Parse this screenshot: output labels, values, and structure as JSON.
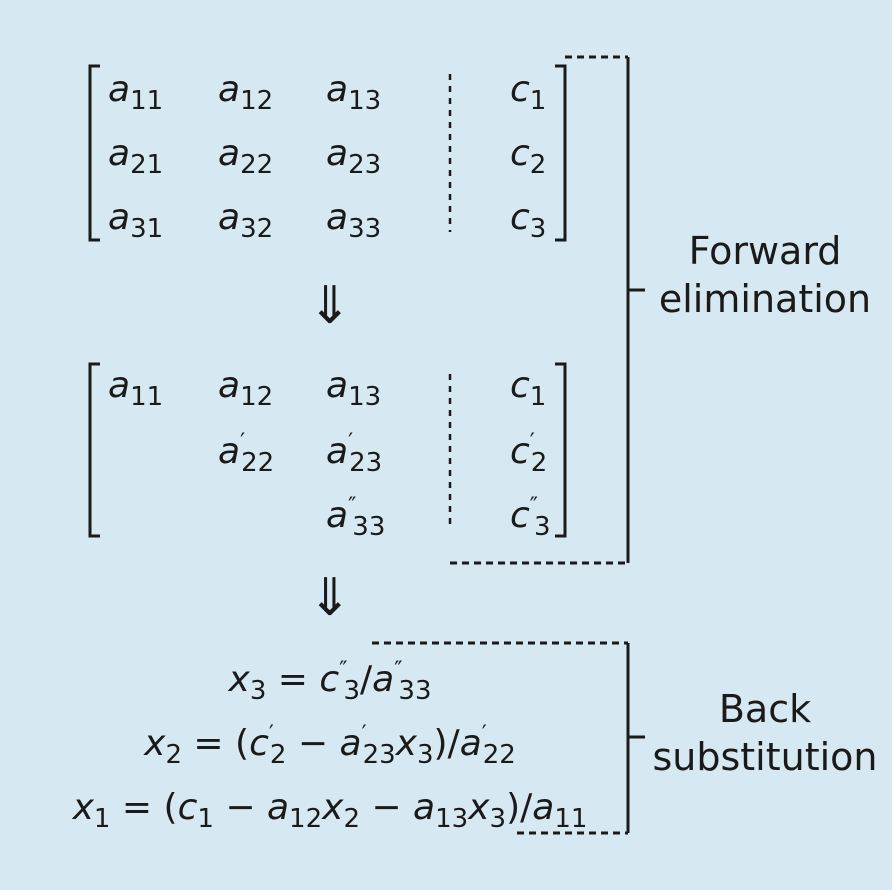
{
  "matrix1": {
    "rows": [
      [
        {
          "v": "a",
          "s": "11"
        },
        {
          "v": "a",
          "s": "12"
        },
        {
          "v": "a",
          "s": "13"
        },
        {
          "v": "c",
          "s": "1"
        }
      ],
      [
        {
          "v": "a",
          "s": "21"
        },
        {
          "v": "a",
          "s": "22"
        },
        {
          "v": "a",
          "s": "23"
        },
        {
          "v": "c",
          "s": "2"
        }
      ],
      [
        {
          "v": "a",
          "s": "31"
        },
        {
          "v": "a",
          "s": "32"
        },
        {
          "v": "a",
          "s": "33"
        },
        {
          "v": "c",
          "s": "3"
        }
      ]
    ]
  },
  "matrix2": {
    "rows": [
      [
        {
          "v": "a",
          "s": "11"
        },
        {
          "v": "a",
          "s": "12"
        },
        {
          "v": "a",
          "s": "13"
        },
        {
          "v": "c",
          "s": "1"
        }
      ],
      [
        null,
        {
          "v": "a",
          "p": "′",
          "s": "22"
        },
        {
          "v": "a",
          "p": "′",
          "s": "23"
        },
        {
          "v": "c",
          "p": "′",
          "s": "2"
        }
      ],
      [
        null,
        null,
        {
          "v": "a",
          "p": "″",
          "s": "33"
        },
        {
          "v": "c",
          "p": "″",
          "s": "3"
        }
      ]
    ]
  },
  "arrow_symbol": "⇓",
  "labels": {
    "forward_line1": "Forward",
    "forward_line2": "elimination",
    "back_line1": "Back",
    "back_line2": "substitution"
  },
  "equations": [
    "<i>x</i><sub>3</sub> = <i>c</i><sup>″</sup><sub>3</sub>/<i>a</i><sup>″</sup><sub>33</sub>",
    "<i>x</i><sub>2</sub> = (<i>c</i><sup>′</sup><sub>2</sub> − <i>a</i><sup>′</sup><sub>23</sub><i>x</i><sub>3</sub>)/<i>a</i><sup>′</sup><sub>22</sub>",
    "<i>x</i><sub>1</sub> = (<i>c</i><sub>1</sub> − <i>a</i><sub>12</sub><i>x</i><sub>2</sub> − <i>a</i><sub>13</sub><i>x</i><sub>3</sub>)/<i>a</i><sub>11</sub>"
  ]
}
